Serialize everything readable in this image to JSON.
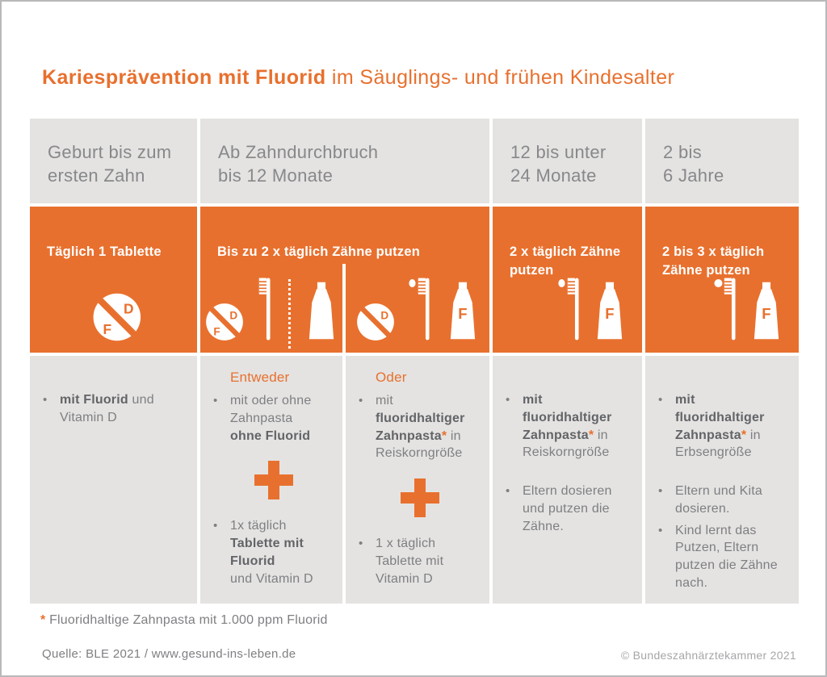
{
  "colors": {
    "accent": "#E8702E",
    "panel_bg": "#E4E3E1"
  },
  "title": {
    "bold": "Kariesprävention mit Fluorid",
    "regular": " im Säuglings- und frühen Kindesalter"
  },
  "age_row": {
    "col1": "Geburt bis zum\nersten Zahn",
    "col2": "Ab Zahndurchbruch\nbis 12 Monate",
    "col3": "12 bis unter\n24 Monate",
    "col4": "2 bis\n6 Jahre"
  },
  "action_row": {
    "col1": "Täglich 1 Tablette",
    "col2": "Bis zu 2 x täglich Zähne putzen",
    "col3": "2 x täglich Zähne\nputzen",
    "col4": "2 bis 3 x täglich\nZähne putzen"
  },
  "icon_letters": {
    "d": "D",
    "f": "F"
  },
  "body": {
    "col1": {
      "item1": [
        {
          "t": "mit Fluorid",
          "b": true
        },
        {
          "t": " und Vitamin D"
        }
      ]
    },
    "col2a": {
      "label": "Entweder",
      "item1": [
        {
          "t": "mit oder ohne Zahnpasta\n"
        },
        {
          "t": "ohne Fluorid",
          "b": true
        }
      ],
      "item2": [
        {
          "t": "1x täglich\n"
        },
        {
          "t": "Tablette mit Fluorid",
          "b": true
        },
        {
          "t": "\nund Vitamin D"
        }
      ]
    },
    "col2b": {
      "label": "Oder",
      "item1": [
        {
          "t": "mit\n"
        },
        {
          "t": "fluoridhaltiger Zahnpasta",
          "b": true
        },
        {
          "t": "*",
          "b": true,
          "o": true
        },
        {
          "t": " in Reiskorngröße"
        }
      ],
      "item2": [
        {
          "t": "1 x täglich Tablette mit Vitamin D"
        }
      ]
    },
    "col3": {
      "item1": [
        {
          "t": "mit\nfluoridhaltiger Zahnpasta",
          "b": true
        },
        {
          "t": "*",
          "b": true,
          "o": true
        },
        {
          "t": " in Reiskorngröße"
        }
      ],
      "item2": [
        {
          "t": "Eltern dosieren und putzen die Zähne."
        }
      ]
    },
    "col4": {
      "item1": [
        {
          "t": "mit\nfluoridhaltiger Zahnpasta",
          "b": true
        },
        {
          "t": "*",
          "b": true,
          "o": true
        },
        {
          "t": " in Erbsengröße"
        }
      ],
      "item2": [
        {
          "t": "Eltern und Kita dosieren."
        }
      ],
      "item3": [
        {
          "t": "Kind lernt das Putzen, Eltern putzen die Zähne nach."
        }
      ]
    }
  },
  "footnote": [
    {
      "t": "*",
      "b": true,
      "o": true
    },
    {
      "t": " Fluoridhaltige Zahnpasta mit 1.000 ppm Fluorid"
    }
  ],
  "source": "Quelle: BLE 2021 / www.gesund-ins-leben.de",
  "copyright": "© Bundeszahnärztekammer 2021"
}
